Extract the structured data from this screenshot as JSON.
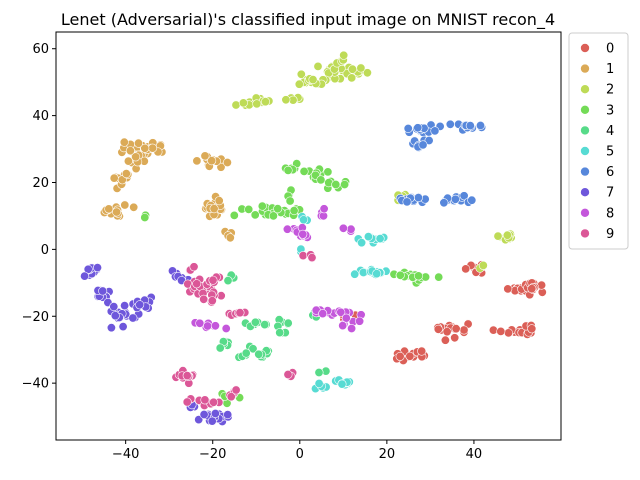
{
  "chart_data": {
    "type": "scatter",
    "title": "Lenet (Adversarial)'s classified input image on MNIST recon_4",
    "xlabel": "",
    "ylabel": "",
    "xlim": [
      -56,
      60
    ],
    "ylim": [
      -57,
      65
    ],
    "x_ticks": [
      -40,
      -20,
      0,
      20,
      40
    ],
    "x_tick_labels": [
      "−40",
      "−20",
      "0",
      "20",
      "40"
    ],
    "y_ticks": [
      -40,
      -20,
      0,
      20,
      40,
      60
    ],
    "y_tick_labels": [
      "−40",
      "−20",
      "0",
      "20",
      "40",
      "60"
    ],
    "grid": false,
    "legend_position": "outside-right-top",
    "series": [
      {
        "name": "0",
        "color": "#db5f57",
        "clusters": [
          [
            51,
            -12,
            3,
            1.2,
            14
          ],
          [
            53,
            -11,
            1.5,
            2,
            10
          ],
          [
            36,
            -23,
            2,
            2,
            8
          ],
          [
            33,
            -25,
            2,
            1.5,
            8
          ],
          [
            26,
            -32,
            3,
            1.5,
            14
          ],
          [
            49,
            -25,
            3,
            1,
            10
          ],
          [
            53,
            -24,
            1,
            1.5,
            5
          ],
          [
            40,
            -6,
            2,
            1.5,
            8
          ],
          [
            12,
            -20,
            3,
            1,
            6
          ]
        ]
      },
      {
        "name": "1",
        "color": "#dbaa57",
        "clusters": [
          [
            -36,
            30,
            4,
            1.5,
            35
          ],
          [
            -38,
            27,
            2,
            2,
            10
          ],
          [
            -20,
            26,
            3,
            1.5,
            12
          ],
          [
            -20,
            12,
            2,
            3,
            20
          ],
          [
            -40,
            20,
            2,
            3,
            12
          ],
          [
            -43,
            12,
            3,
            1.5,
            14
          ],
          [
            -16,
            5,
            1,
            1.5,
            4
          ]
        ]
      },
      {
        "name": "2",
        "color": "#bedb57",
        "clusters": [
          [
            8,
            53,
            6,
            2,
            35
          ],
          [
            10,
            56,
            1,
            1.5,
            6
          ],
          [
            3,
            50,
            4,
            1,
            14
          ],
          [
            -9,
            44,
            4,
            1,
            14
          ],
          [
            -2,
            45,
            2,
            1,
            5
          ],
          [
            23,
            16,
            1,
            1,
            4
          ],
          [
            48,
            4,
            2,
            1,
            14
          ],
          [
            42,
            -5,
            1,
            1,
            3
          ]
        ]
      },
      {
        "name": "3",
        "color": "#74db57",
        "clusters": [
          [
            -8,
            11,
            8,
            1.5,
            22
          ],
          [
            4,
            23,
            3,
            1.5,
            10
          ],
          [
            8,
            20,
            3,
            2,
            8
          ],
          [
            -2,
            15,
            1,
            2,
            4
          ],
          [
            -2,
            24,
            2,
            1,
            6
          ],
          [
            26,
            -8,
            4,
            1.5,
            18
          ],
          [
            -16,
            -45,
            2,
            2,
            6
          ],
          [
            -35,
            10,
            1,
            1,
            2
          ]
        ]
      },
      {
        "name": "4",
        "color": "#57db89",
        "clusters": [
          [
            -8,
            -22,
            4,
            1,
            12
          ],
          [
            -9,
            -31,
            4,
            2,
            14
          ],
          [
            -18,
            -28,
            2,
            1.5,
            6
          ],
          [
            -16,
            -8,
            1,
            1.5,
            5
          ],
          [
            -4,
            -25,
            1,
            1,
            3
          ],
          [
            6,
            -37,
            1,
            1,
            2
          ],
          [
            4,
            -19,
            1,
            1,
            3
          ]
        ]
      },
      {
        "name": "5",
        "color": "#57dbd3",
        "clusters": [
          [
            16,
            -7,
            3,
            1,
            14
          ],
          [
            16,
            3,
            3,
            1,
            10
          ],
          [
            10,
            -40,
            2,
            1,
            10
          ],
          [
            5,
            -41,
            1,
            1,
            5
          ],
          [
            1,
            9,
            1,
            1.5,
            4
          ],
          [
            0,
            0,
            1,
            1,
            2
          ]
        ]
      },
      {
        "name": "6",
        "color": "#5787db",
        "clusters": [
          [
            28,
            36,
            4,
            1,
            16
          ],
          [
            37,
            37,
            4,
            1,
            14
          ],
          [
            28,
            32,
            2,
            1.5,
            8
          ],
          [
            25,
            15,
            3,
            1,
            14
          ],
          [
            35,
            15,
            2,
            1,
            8
          ],
          [
            38,
            15,
            2,
            1,
            8
          ]
        ]
      },
      {
        "name": "7",
        "color": "#6e57db",
        "clusters": [
          [
            -48,
            -7,
            2,
            2,
            14
          ],
          [
            -45,
            -14,
            2,
            2,
            10
          ],
          [
            -41,
            -20,
            3,
            3,
            20
          ],
          [
            -36,
            -16,
            3,
            1.5,
            10
          ],
          [
            -28,
            -8,
            2,
            1.5,
            8
          ],
          [
            -20,
            -50,
            3,
            1.5,
            16
          ],
          [
            -24,
            -47,
            1,
            1,
            4
          ]
        ]
      },
      {
        "name": "8",
        "color": "#c457db",
        "clusters": [
          [
            8,
            -19,
            4,
            1,
            16
          ],
          [
            12,
            -22,
            2,
            1.5,
            6
          ],
          [
            0,
            5,
            2,
            1.5,
            10
          ],
          [
            -20,
            -23,
            3,
            1.5,
            8
          ],
          [
            5,
            11,
            1,
            1.5,
            4
          ],
          [
            11,
            6,
            1,
            1,
            3
          ]
        ]
      },
      {
        "name": "9",
        "color": "#db5797",
        "clusters": [
          [
            -23,
            -12,
            3,
            2,
            20
          ],
          [
            -20,
            -9,
            2,
            1.5,
            8
          ],
          [
            -26,
            -38,
            2,
            1.5,
            14
          ],
          [
            -22,
            -45,
            3,
            2,
            10
          ],
          [
            -15,
            -19,
            2,
            1,
            6
          ],
          [
            -15,
            -43,
            1,
            2,
            6
          ],
          [
            2,
            -2,
            1,
            1,
            4
          ],
          [
            -2,
            -38,
            1,
            1,
            4
          ],
          [
            -20,
            -14,
            2,
            2,
            8
          ],
          [
            -25,
            -6,
            1,
            1,
            3
          ]
        ]
      }
    ]
  }
}
